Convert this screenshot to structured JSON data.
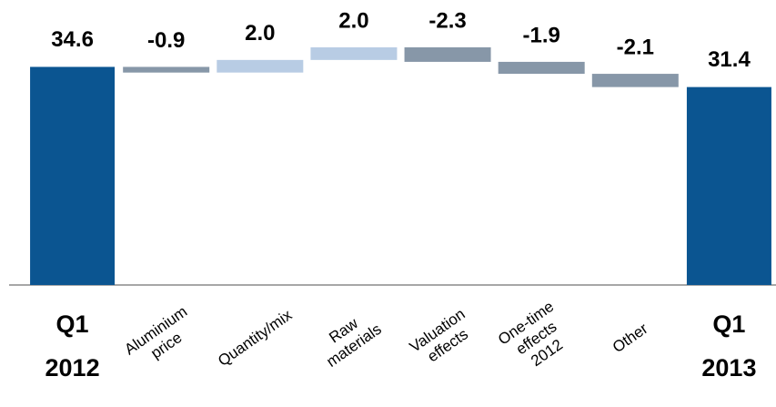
{
  "chart_data": {
    "type": "waterfall",
    "categories": [
      [
        "Q1",
        "2012"
      ],
      [
        "Aluminium",
        "price"
      ],
      [
        "Quantity/mix"
      ],
      [
        "Raw",
        "materials"
      ],
      [
        "Valuation",
        "effects"
      ],
      [
        "One-time",
        "effects",
        "2012"
      ],
      [
        "Other"
      ],
      [
        "Q1",
        "2013"
      ]
    ],
    "values": [
      34.6,
      -0.9,
      2.0,
      2.0,
      -2.3,
      -1.9,
      -2.1,
      31.4
    ],
    "value_labels": [
      "34.6",
      "-0.9",
      "2.0",
      "2.0",
      "-2.3",
      "-1.9",
      "-2.1",
      "31.4"
    ],
    "colors": [
      "#0b5591",
      "#8797a8",
      "#b8cce4",
      "#b8cce4",
      "#8797a8",
      "#8797a8",
      "#8797a8",
      "#0b5591"
    ]
  }
}
